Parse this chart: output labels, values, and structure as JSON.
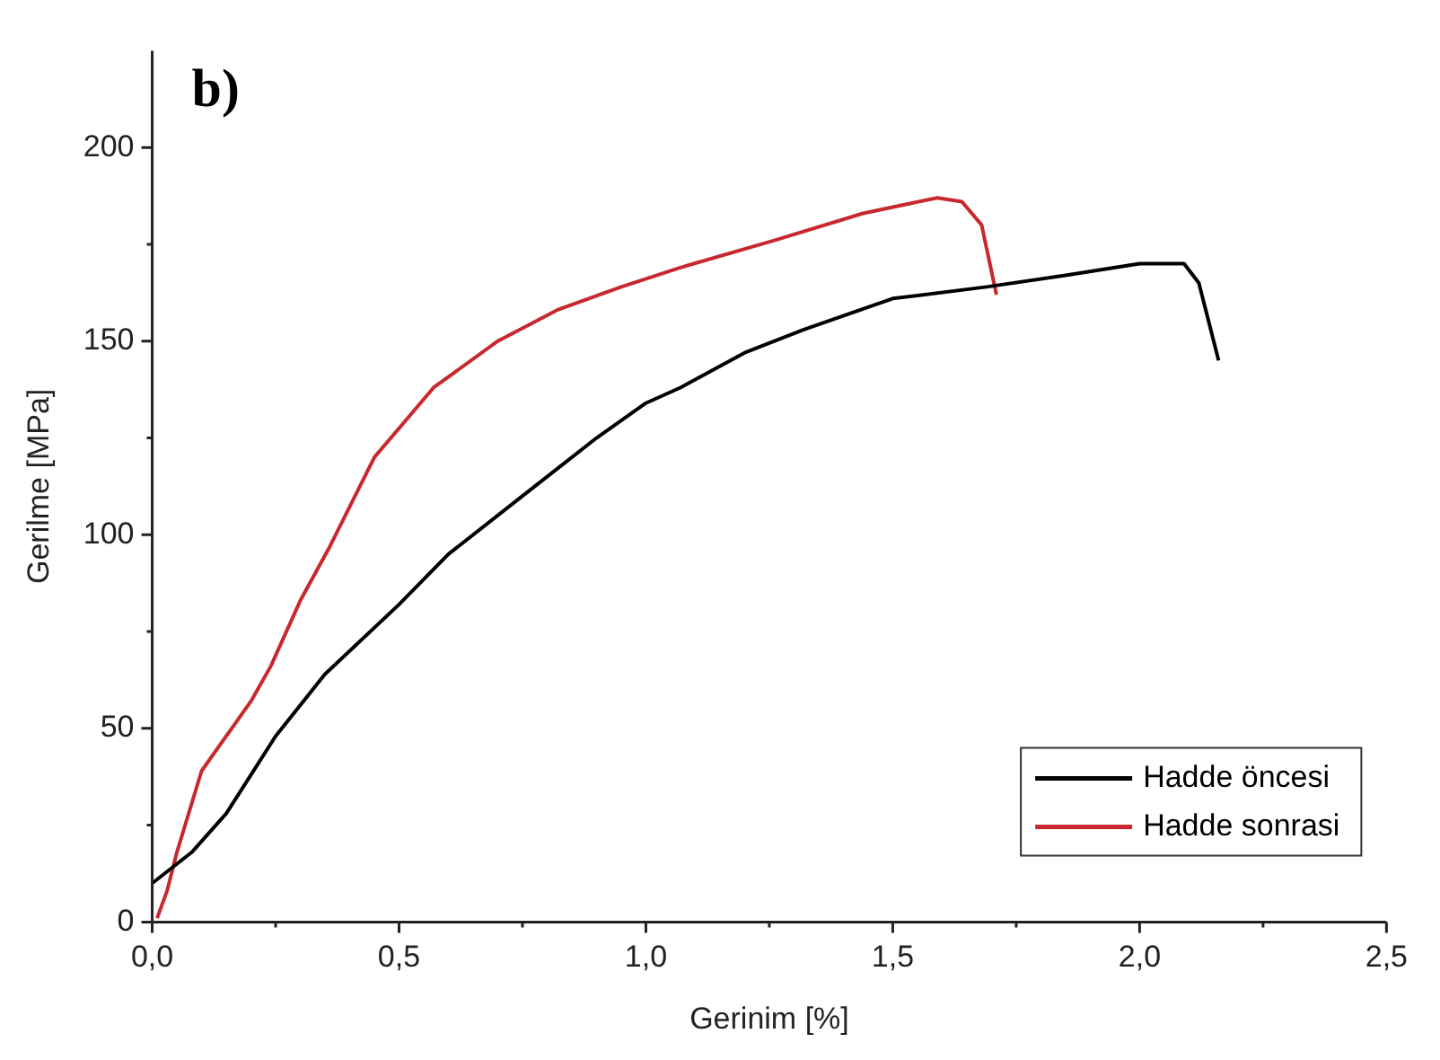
{
  "chart_data": {
    "type": "line",
    "title": "b)",
    "xlabel": "Gerinim [%]",
    "ylabel": "Gerilme [MPa]",
    "xlim": [
      0,
      2.5
    ],
    "ylim": [
      0,
      225
    ],
    "xticks": [
      {
        "value": 0,
        "label": "0,0"
      },
      {
        "value": 0.5,
        "label": "0,5"
      },
      {
        "value": 1,
        "label": "1,0"
      },
      {
        "value": 1.5,
        "label": "1,5"
      },
      {
        "value": 2,
        "label": "2,0"
      },
      {
        "value": 2.5,
        "label": "2,5"
      }
    ],
    "yticks": [
      0,
      50,
      100,
      150,
      200
    ],
    "grid": false,
    "legend": "bottom right",
    "marker": "none",
    "line_style": "solid",
    "series": [
      {
        "name": "Hadde öncesi",
        "color": "#000000",
        "x": [
          0,
          0.08,
          0.15,
          0.2,
          0.25,
          0.35,
          0.5,
          0.6,
          0.75,
          0.9,
          1.0,
          1.07,
          1.2,
          1.32,
          1.5,
          1.69,
          1.85,
          2.0,
          2.09,
          2.12,
          2.16
        ],
        "values": [
          10,
          18,
          28,
          38,
          48,
          64,
          82,
          95,
          110,
          125,
          134,
          138,
          147,
          153,
          161,
          164,
          167,
          170,
          170,
          165,
          145
        ]
      },
      {
        "name": "Hadde sonrasi",
        "color": "#c8282d",
        "x": [
          0.01,
          0.03,
          0.05,
          0.1,
          0.15,
          0.2,
          0.24,
          0.3,
          0.36,
          0.45,
          0.57,
          0.7,
          0.82,
          0.95,
          1.07,
          1.26,
          1.44,
          1.59,
          1.64,
          1.68,
          1.71
        ],
        "values": [
          1,
          8,
          18,
          39,
          48,
          57,
          66,
          83,
          97,
          120,
          138,
          150,
          158,
          164,
          169,
          176,
          183,
          187,
          186,
          180,
          162
        ]
      }
    ]
  }
}
